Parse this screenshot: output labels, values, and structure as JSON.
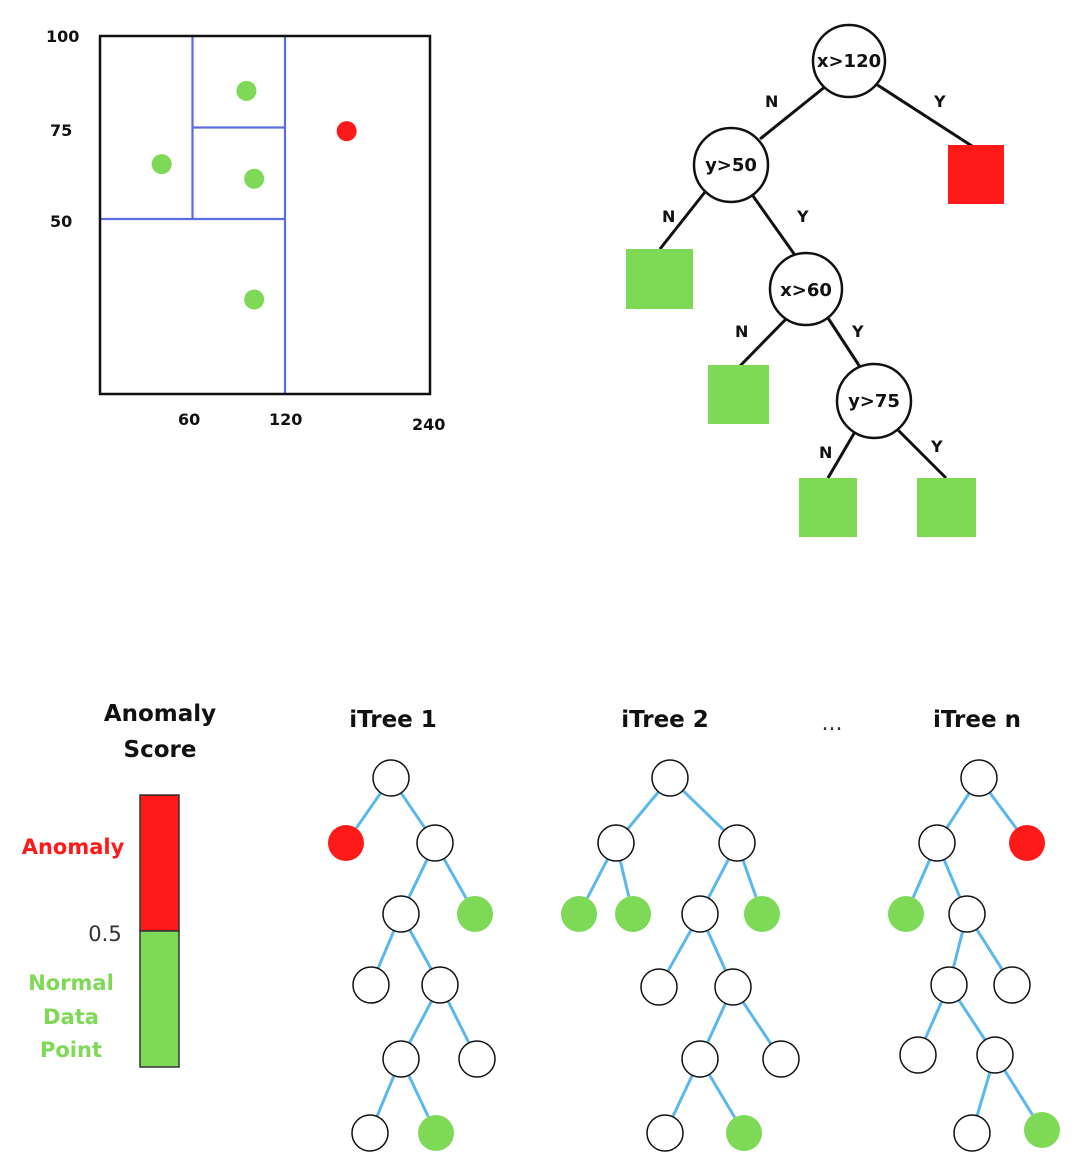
{
  "colors": {
    "normal": "#7ed957",
    "anomaly": "#ff1a1a",
    "partition": "#5b6ee1",
    "itree_edge": "#5bb8ee",
    "ink": "#111111"
  },
  "scatter": {
    "x_ticks": [
      "60",
      "120",
      "240"
    ],
    "y_ticks": [
      "100",
      "75",
      "50"
    ],
    "xlim": [
      0,
      240
    ],
    "ylim": [
      0,
      100
    ],
    "points": [
      {
        "x": 95,
        "y": 85,
        "label": "normal"
      },
      {
        "x": 40,
        "y": 65,
        "label": "normal"
      },
      {
        "x": 100,
        "y": 61,
        "label": "normal"
      },
      {
        "x": 100,
        "y": 28,
        "label": "normal"
      },
      {
        "x": 160,
        "y": 74,
        "label": "anomaly"
      }
    ],
    "splits": [
      {
        "axis": "x",
        "value": 120,
        "from": 0,
        "to": 100
      },
      {
        "axis": "y",
        "value": 50,
        "from": 0,
        "to": 120
      },
      {
        "axis": "x",
        "value": 60,
        "from": 50,
        "to": 100
      },
      {
        "axis": "y",
        "value": 75,
        "from": 60,
        "to": 120
      }
    ]
  },
  "decision_tree": {
    "nodes": [
      "x>120",
      "y>50",
      "x>60",
      "y>75"
    ],
    "edge_no": "N",
    "edge_yes": "Y"
  },
  "score_bar": {
    "title_line1": "Anomaly",
    "title_line2": "Score",
    "anomaly_label": "Anomaly",
    "threshold": "0.5",
    "normal_line1": "Normal",
    "normal_line2": "Data",
    "normal_line3": "Point"
  },
  "itrees": [
    {
      "title": "iTree 1"
    },
    {
      "title": "iTree 2"
    },
    {
      "title": "iTree n"
    }
  ],
  "ellipsis": "..."
}
